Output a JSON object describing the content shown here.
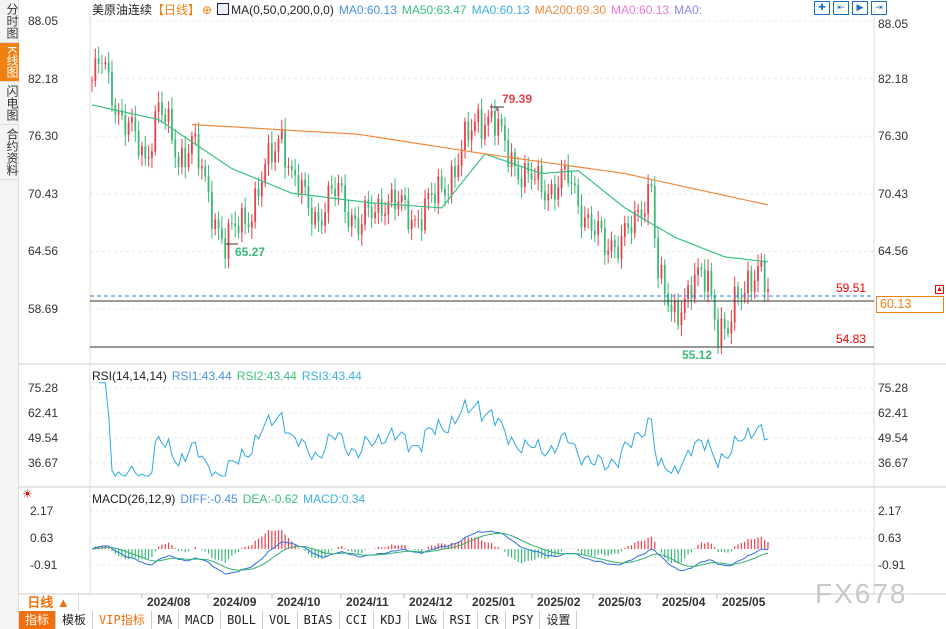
{
  "sidebar": {
    "tabs": [
      {
        "label": "分时图",
        "active": false
      },
      {
        "label": "K线图",
        "active": true
      },
      {
        "label": "闪电图",
        "active": false
      },
      {
        "label": "合约资料",
        "active": false
      }
    ]
  },
  "header": {
    "symbol": "美原油连续",
    "period_tag": "【日线】",
    "ma_params": "MA(0,50,0,200,0,0)",
    "ma_values": [
      {
        "label": "MA0:60.13",
        "color": "#4a90e2"
      },
      {
        "label": "MA50:63.47",
        "color": "#3cc080"
      },
      {
        "label": "MA0:60.13",
        "color": "#40b0e0"
      },
      {
        "label": "MA200:69.30",
        "color": "#f08a3c"
      },
      {
        "label": "MA0:60.13",
        "color": "#e878d8"
      },
      {
        "label": "MA0:",
        "color": "#8a8af0"
      }
    ]
  },
  "toolbar": {
    "icons": [
      "crosshair-icon",
      "fit-icon",
      "play-icon",
      "exit-icon"
    ]
  },
  "price_axis": {
    "ticks": [
      "88.05",
      "82.18",
      "76.30",
      "70.43",
      "64.56",
      "58.69"
    ]
  },
  "price_lines": {
    "last": "59.51",
    "support": "54.83",
    "current": "60.13"
  },
  "annotations": {
    "high": "79.39",
    "low1": "65.27",
    "low2": "55.12"
  },
  "rsi": {
    "title": "RSI(14,14,14)",
    "rsi1": "RSI1:43.44",
    "rsi2": "RSI2:43.44",
    "rsi3": "RSI3:43.44",
    "ticks": [
      "75.28",
      "62.41",
      "49.54",
      "36.67"
    ]
  },
  "macd": {
    "title": "MACD(26,12,9)",
    "diff": "DIFF:-0.45",
    "dea": "DEA:-0.62",
    "macd": "MACD:0.34",
    "ticks": [
      "2.17",
      "0.63",
      "-0.91"
    ]
  },
  "x_axis": {
    "labels": [
      "2024/08",
      "2024/09",
      "2024/10",
      "2024/11",
      "2024/12",
      "2025/01",
      "2025/02",
      "2025/03",
      "2025/04",
      "2025/05"
    ]
  },
  "period_button": "日线 ▲",
  "bottom_tabs": [
    "指标",
    "模板",
    "VIP指标",
    "MA",
    "MACD",
    "BOLL",
    "VOL",
    "BIAS",
    "CCI",
    "KDJ",
    "LW&",
    "RSI",
    "CR",
    "PSY",
    "设置"
  ],
  "watermark": "FX678",
  "colors": {
    "up": "#e8404a",
    "down": "#3cb878",
    "ma50": "#3cc080",
    "ma200": "#f08a3c",
    "rsi": "#30a8e0",
    "accent": "#f08010"
  },
  "chart_data": {
    "type": "candlestick",
    "ylim": [
      54.0,
      88.05
    ],
    "close_path": [
      [
        0,
        82
      ],
      [
        3,
        83.8
      ],
      [
        8,
        79
      ],
      [
        16,
        74
      ],
      [
        20,
        79.5
      ],
      [
        26,
        74
      ],
      [
        30,
        76
      ],
      [
        35,
        70
      ],
      [
        40,
        65.3
      ],
      [
        48,
        69
      ],
      [
        57,
        77
      ],
      [
        60,
        72
      ],
      [
        68,
        68
      ],
      [
        74,
        71
      ],
      [
        80,
        67
      ],
      [
        88,
        70
      ],
      [
        97,
        68
      ],
      [
        103,
        70
      ],
      [
        109,
        73
      ],
      [
        116,
        78.5
      ],
      [
        120,
        78
      ],
      [
        123,
        76
      ],
      [
        130,
        72
      ],
      [
        138,
        71
      ],
      [
        143,
        72
      ],
      [
        150,
        67
      ],
      [
        154,
        65
      ],
      [
        163,
        67
      ],
      [
        168,
        72
      ],
      [
        170,
        62
      ],
      [
        174,
        58
      ],
      [
        180,
        61
      ],
      [
        185,
        62
      ],
      [
        188,
        57
      ],
      [
        191,
        56
      ],
      [
        194,
        60
      ],
      [
        197,
        62
      ],
      [
        200,
        62.5
      ],
      [
        203,
        60.1
      ]
    ],
    "ma50_path": [
      [
        0,
        79.5
      ],
      [
        20,
        78
      ],
      [
        42,
        73
      ],
      [
        60,
        70.5
      ],
      [
        84,
        69.5
      ],
      [
        105,
        69
      ],
      [
        118,
        74.5
      ],
      [
        135,
        72.5
      ],
      [
        146,
        72.8
      ],
      [
        160,
        69
      ],
      [
        175,
        66
      ],
      [
        190,
        64
      ],
      [
        203,
        63.5
      ]
    ],
    "ma200_path": [
      [
        30,
        77.5
      ],
      [
        80,
        76.5
      ],
      [
        118,
        74.5
      ],
      [
        160,
        72.5
      ],
      [
        180,
        71
      ],
      [
        203,
        69.3
      ]
    ]
  }
}
